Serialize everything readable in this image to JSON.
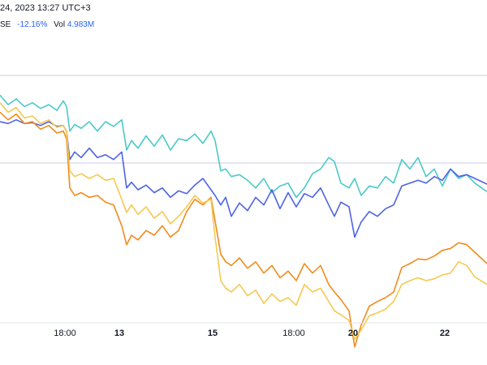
{
  "header": {
    "date_text": "24, 2023 13:27 UTC+3",
    "exchange_text": "SE",
    "change_text": "-12.16%",
    "vol_label": "Vol",
    "vol_value": "4.983M"
  },
  "colors": {
    "teal": "#4cc9c9",
    "blue": "#4d63e6",
    "orange": "#f08c1c",
    "yellow": "#f5c850",
    "gridline": "#c8cbe8",
    "axis": "#e0e3eb"
  },
  "chart_data": {
    "type": "line",
    "xlabel": "",
    "ylabel": "",
    "grid": true,
    "xlim": [
      0,
      600
    ],
    "ylim": [
      300,
      0
    ],
    "x_ticks": [
      {
        "label": "18:00",
        "x": 80,
        "bold": false
      },
      {
        "label": "13",
        "x": 147,
        "bold": true
      },
      {
        "label": "15",
        "x": 262,
        "bold": true
      },
      {
        "label": "18:00",
        "x": 362,
        "bold": false
      },
      {
        "label": "20",
        "x": 435,
        "bold": true
      },
      {
        "label": "22",
        "x": 548,
        "bold": true
      }
    ],
    "series": [
      {
        "color": "teal",
        "x": [
          0,
          10,
          20,
          30,
          40,
          50,
          60,
          70,
          78,
          82,
          86,
          92,
          100,
          110,
          120,
          130,
          140,
          150,
          156,
          162,
          170,
          180,
          190,
          200,
          210,
          220,
          230,
          240,
          250,
          260,
          265,
          272,
          278,
          285,
          295,
          305,
          315,
          325,
          335,
          345,
          355,
          365,
          375,
          385,
          395,
          405,
          412,
          420,
          430,
          437,
          445,
          455,
          465,
          475,
          485,
          495,
          505,
          515,
          525,
          535,
          545,
          555,
          565,
          575,
          585,
          600
        ],
        "y": [
          62,
          72,
          66,
          74,
          70,
          76,
          72,
          78,
          68,
          74,
          100,
          93,
          97,
          90,
          100,
          90,
          95,
          88,
          120,
          110,
          118,
          105,
          116,
          104,
          120,
          108,
          110,
          103,
          113,
          100,
          110,
          142,
          140,
          148,
          146,
          152,
          160,
          150,
          165,
          158,
          155,
          170,
          160,
          145,
          140,
          128,
          132,
          155,
          160,
          150,
          168,
          158,
          160,
          148,
          155,
          130,
          140,
          128,
          148,
          140,
          158,
          140,
          150,
          146,
          155,
          164
        ],
        "values": [
          62,
          72,
          66,
          74,
          70,
          76,
          72,
          78,
          68,
          74,
          100,
          93,
          97,
          90,
          100,
          90,
          95,
          88,
          120,
          110,
          118,
          105,
          116,
          104,
          120,
          108,
          110,
          103,
          113,
          100,
          110,
          142,
          140,
          148,
          146,
          152,
          160,
          150,
          165,
          158,
          155,
          170,
          160,
          145,
          140,
          128,
          132,
          155,
          160,
          150,
          168,
          158,
          160,
          148,
          155,
          130,
          140,
          128,
          148,
          140,
          158,
          140,
          150,
          146,
          155,
          164
        ]
      },
      {
        "color": "blue",
        "x": [
          0,
          10,
          20,
          30,
          40,
          50,
          60,
          70,
          78,
          82,
          86,
          92,
          100,
          110,
          120,
          130,
          140,
          150,
          156,
          162,
          170,
          180,
          190,
          200,
          210,
          220,
          230,
          240,
          250,
          260,
          265,
          272,
          278,
          285,
          295,
          305,
          315,
          325,
          335,
          345,
          355,
          365,
          375,
          385,
          395,
          405,
          412,
          420,
          430,
          437,
          445,
          455,
          465,
          475,
          485,
          495,
          505,
          515,
          525,
          535,
          545,
          555,
          565,
          575,
          585,
          600
        ],
        "y": [
          90,
          92,
          88,
          92,
          91,
          94,
          90,
          95,
          94,
          100,
          130,
          122,
          128,
          118,
          128,
          125,
          130,
          122,
          160,
          154,
          162,
          157,
          165,
          160,
          170,
          163,
          166,
          157,
          150,
          162,
          168,
          178,
          170,
          190,
          176,
          184,
          170,
          178,
          162,
          182,
          165,
          180,
          166,
          170,
          160,
          178,
          190,
          175,
          180,
          212,
          196,
          185,
          190,
          182,
          178,
          158,
          155,
          152,
          155,
          148,
          152,
          140,
          148,
          146,
          150,
          156
        ],
        "values": [
          90,
          92,
          88,
          92,
          91,
          94,
          90,
          95,
          94,
          100,
          130,
          122,
          128,
          118,
          128,
          125,
          130,
          122,
          160,
          154,
          162,
          157,
          165,
          160,
          170,
          163,
          166,
          157,
          150,
          162,
          168,
          178,
          170,
          190,
          176,
          184,
          170,
          178,
          162,
          182,
          165,
          180,
          166,
          170,
          160,
          178,
          190,
          175,
          180,
          212,
          196,
          185,
          190,
          182,
          178,
          158,
          155,
          152,
          155,
          148,
          152,
          140,
          148,
          146,
          150,
          156
        ]
      },
      {
        "color": "orange",
        "x": [
          0,
          10,
          20,
          30,
          40,
          50,
          60,
          70,
          78,
          82,
          86,
          92,
          100,
          110,
          120,
          130,
          140,
          150,
          156,
          162,
          170,
          180,
          190,
          200,
          210,
          220,
          230,
          240,
          250,
          260,
          265,
          272,
          278,
          285,
          295,
          305,
          315,
          325,
          335,
          345,
          355,
          365,
          375,
          385,
          395,
          405,
          412,
          420,
          430,
          437,
          445,
          455,
          465,
          475,
          485,
          495,
          505,
          515,
          525,
          535,
          545,
          555,
          565,
          575,
          585,
          600
        ],
        "y": [
          80,
          88,
          82,
          92,
          90,
          98,
          94,
          102,
          100,
          108,
          160,
          168,
          165,
          170,
          168,
          175,
          178,
          200,
          220,
          210,
          215,
          205,
          210,
          200,
          212,
          205,
          185,
          172,
          178,
          170,
          195,
          230,
          238,
          242,
          234,
          245,
          238,
          250,
          242,
          255,
          248,
          258,
          240,
          250,
          242,
          262,
          270,
          278,
          290,
          328,
          305,
          285,
          280,
          276,
          270,
          244,
          240,
          235,
          236,
          232,
          226,
          224,
          218,
          220,
          228,
          240
        ],
        "values": [
          80,
          88,
          82,
          92,
          90,
          98,
          94,
          102,
          100,
          108,
          160,
          168,
          165,
          170,
          168,
          175,
          178,
          200,
          220,
          210,
          215,
          205,
          210,
          200,
          212,
          205,
          185,
          172,
          178,
          170,
          195,
          230,
          238,
          242,
          234,
          245,
          238,
          250,
          242,
          255,
          248,
          258,
          240,
          250,
          242,
          262,
          270,
          278,
          290,
          328,
          305,
          285,
          280,
          276,
          270,
          244,
          240,
          235,
          236,
          232,
          226,
          224,
          218,
          220,
          228,
          240
        ]
      },
      {
        "color": "yellow",
        "x": [
          0,
          10,
          20,
          30,
          40,
          50,
          60,
          70,
          78,
          82,
          86,
          92,
          100,
          110,
          120,
          130,
          140,
          150,
          156,
          162,
          170,
          180,
          190,
          200,
          210,
          220,
          230,
          240,
          250,
          260,
          265,
          272,
          278,
          285,
          295,
          305,
          315,
          325,
          335,
          345,
          355,
          365,
          375,
          385,
          395,
          405,
          412,
          420,
          430,
          437,
          445,
          455,
          465,
          475,
          485,
          495,
          505,
          515,
          525,
          535,
          545,
          555,
          565,
          575,
          585,
          600
        ],
        "y": [
          70,
          80,
          75,
          86,
          84,
          92,
          88,
          96,
          94,
          100,
          142,
          148,
          145,
          150,
          146,
          152,
          150,
          172,
          186,
          178,
          188,
          180,
          192,
          185,
          198,
          190,
          180,
          168,
          176,
          172,
          212,
          258,
          266,
          270,
          262,
          274,
          268,
          282,
          272,
          280,
          276,
          284,
          262,
          270,
          266,
          280,
          290,
          294,
          300,
          320,
          310,
          295,
          292,
          288,
          280,
          262,
          258,
          255,
          258,
          256,
          252,
          250,
          238,
          242,
          254,
          262
        ],
        "values": [
          70,
          80,
          75,
          86,
          84,
          92,
          88,
          96,
          94,
          100,
          142,
          148,
          145,
          150,
          146,
          152,
          150,
          172,
          186,
          178,
          188,
          180,
          192,
          185,
          198,
          190,
          180,
          168,
          176,
          172,
          212,
          258,
          266,
          270,
          262,
          274,
          268,
          282,
          272,
          280,
          276,
          284,
          262,
          270,
          266,
          280,
          290,
          294,
          300,
          320,
          310,
          295,
          292,
          288,
          280,
          262,
          258,
          255,
          258,
          256,
          252,
          250,
          238,
          242,
          254,
          262
        ]
      }
    ]
  }
}
